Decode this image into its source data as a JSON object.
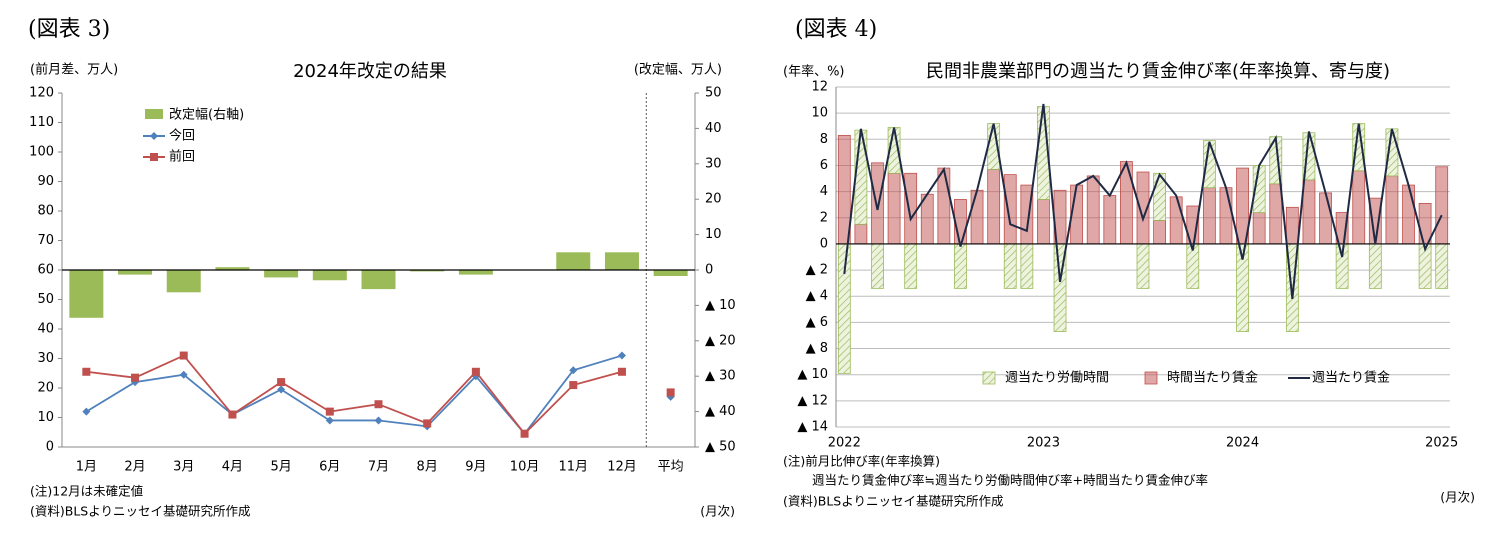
{
  "chart_data": [
    {
      "type": "combo",
      "figure_label": "(図表 3)",
      "title": "2024年改定の結果",
      "y_label": "(前月差、万人)",
      "y2_label": "(改定幅、万人)",
      "x_unit": "(月次)",
      "notes": [
        "(注)12月は未確定値",
        "(資料)BLSよりニッセイ基礎研究所作成"
      ],
      "categories": [
        "1月",
        "2月",
        "3月",
        "4月",
        "5月",
        "6月",
        "7月",
        "8月",
        "9月",
        "10月",
        "11月",
        "12月",
        "平均"
      ],
      "series": [
        {
          "name": "改定幅(右軸)",
          "kind": "bar",
          "axis": "y2",
          "color": "#9bbb59",
          "values": [
            -13.5,
            -1.3,
            -6.3,
            0.8,
            -2.1,
            -2.9,
            -5.4,
            -0.4,
            -1.3,
            0,
            5,
            5,
            -1.7
          ]
        },
        {
          "name": "今回",
          "kind": "line",
          "marker": "diamond",
          "color": "#4f81bd",
          "values": [
            12,
            22,
            24.5,
            11,
            19.5,
            9,
            9,
            7,
            24,
            4.5,
            26,
            31,
            17
          ]
        },
        {
          "name": "前回",
          "kind": "line",
          "marker": "square",
          "color": "#c0504d",
          "values": [
            25.5,
            23.5,
            31,
            11,
            22,
            12,
            14.5,
            8,
            25.5,
            4.5,
            21,
            25.5,
            18.5
          ]
        }
      ],
      "ylim": [
        0,
        120
      ],
      "yticks": [
        0,
        10,
        20,
        30,
        40,
        50,
        60,
        70,
        80,
        90,
        100,
        110,
        120
      ],
      "y2lim": [
        -50,
        50
      ],
      "y2ticks": [
        {
          "value": -50,
          "label": "▲ 50"
        },
        {
          "value": -40,
          "label": "▲ 40"
        },
        {
          "value": -30,
          "label": "▲ 30"
        },
        {
          "value": -20,
          "label": "▲ 20"
        },
        {
          "value": -10,
          "label": "▲ 10"
        },
        0,
        10,
        20,
        30,
        40,
        50
      ],
      "grid": false,
      "legend": "upper left"
    },
    {
      "type": "stacked_combo",
      "figure_label": "(図表 4)",
      "title": "民間非農業部門の週当たり賃金伸び率(年率換算、寄与度)",
      "y_label": "(年率、%)",
      "x_unit": "(月次)",
      "notes": [
        "(注)前月比伸び率(年率換算)",
        "週当たり賃金伸び率≒週当たり労働時間伸び率+時間当たり賃金伸び率",
        "(資料)BLSよりニッセイ基礎研究所作成"
      ],
      "categories": [
        "2022",
        null,
        null,
        null,
        null,
        null,
        null,
        null,
        null,
        null,
        null,
        null,
        "2023",
        null,
        null,
        null,
        null,
        null,
        null,
        null,
        null,
        null,
        null,
        null,
        "2024",
        null,
        null,
        null,
        null,
        null,
        null,
        null,
        null,
        null,
        null,
        null,
        "2025"
      ],
      "series": [
        {
          "name": "週当たり労働時間",
          "kind": "bar",
          "pattern": "hatch",
          "color": "#9bbb59",
          "values": [
            -9.9,
            7.2,
            -3.4,
            3.5,
            -3.4,
            0,
            0,
            -3.4,
            0,
            3.5,
            -3.4,
            -3.4,
            7.1,
            -6.7,
            0,
            0,
            0,
            0,
            -3.4,
            3.6,
            0,
            -3.4,
            3.6,
            0,
            -6.7,
            3.6,
            3.6,
            -6.7,
            3.6,
            0,
            -3.4,
            3.6,
            -3.4,
            3.6,
            0,
            -3.4,
            -3.4
          ]
        },
        {
          "name": "時間当たり賃金",
          "kind": "bar",
          "color": "#c0504d",
          "values": [
            8.3,
            1.5,
            6.2,
            5.4,
            5.4,
            3.8,
            5.8,
            3.4,
            4.1,
            5.7,
            5.3,
            4.5,
            3.4,
            4.1,
            4.5,
            5.2,
            3.7,
            6.3,
            5.5,
            1.8,
            3.6,
            2.9,
            4.3,
            4.3,
            5.8,
            2.4,
            4.6,
            2.8,
            4.9,
            3.9,
            2.4,
            5.6,
            3.5,
            5.2,
            4.5,
            3.1,
            5.9
          ]
        },
        {
          "name": "週当たり賃金",
          "kind": "line",
          "color": "#1f2a44",
          "values": [
            -2.3,
            8.8,
            2.6,
            8.9,
            1.9,
            3.8,
            5.7,
            -0.2,
            4.1,
            9.2,
            1.5,
            1.0,
            10.7,
            -2.9,
            4.5,
            5.2,
            3.7,
            6.2,
            1.9,
            5.3,
            3.7,
            -0.5,
            7.8,
            4.3,
            -1.2,
            6.0,
            8.1,
            -4.2,
            8.6,
            3.9,
            -1.0,
            9.2,
            0.0,
            8.8,
            4.5,
            -0.4,
            2.2
          ]
        }
      ],
      "ylim": [
        -14,
        12
      ],
      "yticks": [
        {
          "value": -14,
          "label": "▲ 14"
        },
        {
          "value": -12,
          "label": "▲ 12"
        },
        {
          "value": -10,
          "label": "▲ 10"
        },
        {
          "value": -8,
          "label": "▲ 8"
        },
        {
          "value": -6,
          "label": "▲ 6"
        },
        {
          "value": -4,
          "label": "▲ 4"
        },
        {
          "value": -2,
          "label": "▲ 2"
        },
        0,
        2,
        4,
        6,
        8,
        10,
        12
      ],
      "grid": true,
      "legend": "lower center"
    }
  ]
}
